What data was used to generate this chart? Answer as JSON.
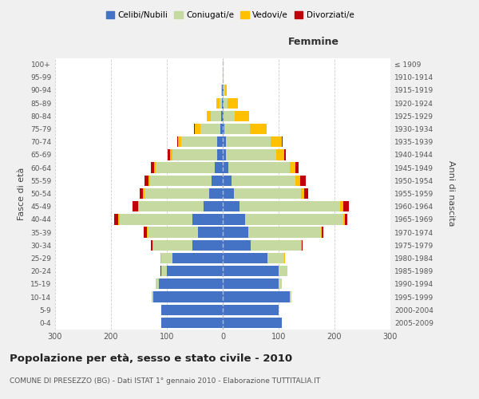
{
  "age_groups": [
    "0-4",
    "5-9",
    "10-14",
    "15-19",
    "20-24",
    "25-29",
    "30-34",
    "35-39",
    "40-44",
    "45-49",
    "50-54",
    "55-59",
    "60-64",
    "65-69",
    "70-74",
    "75-79",
    "80-84",
    "85-89",
    "90-94",
    "95-99",
    "100+"
  ],
  "birth_years": [
    "2005-2009",
    "2000-2004",
    "1995-1999",
    "1990-1994",
    "1985-1989",
    "1980-1984",
    "1975-1979",
    "1970-1974",
    "1965-1969",
    "1960-1964",
    "1955-1959",
    "1950-1954",
    "1945-1949",
    "1940-1944",
    "1935-1939",
    "1930-1934",
    "1925-1929",
    "1920-1924",
    "1915-1919",
    "1910-1914",
    "≤ 1909"
  ],
  "male": {
    "celibi": [
      110,
      110,
      125,
      115,
      100,
      90,
      55,
      45,
      55,
      35,
      25,
      20,
      15,
      10,
      10,
      5,
      3,
      1,
      1,
      0,
      0
    ],
    "coniugati": [
      0,
      0,
      2,
      5,
      10,
      20,
      70,
      90,
      130,
      115,
      115,
      110,
      105,
      80,
      65,
      35,
      18,
      5,
      2,
      0,
      0
    ],
    "vedovi": [
      0,
      0,
      0,
      0,
      0,
      1,
      1,
      1,
      2,
      2,
      3,
      3,
      3,
      5,
      5,
      10,
      8,
      5,
      0,
      0,
      0
    ],
    "divorziati": [
      0,
      0,
      0,
      0,
      1,
      1,
      3,
      5,
      8,
      10,
      5,
      7,
      5,
      3,
      2,
      2,
      0,
      0,
      0,
      0,
      0
    ]
  },
  "female": {
    "nubili": [
      105,
      100,
      120,
      100,
      100,
      80,
      50,
      45,
      40,
      30,
      20,
      15,
      10,
      5,
      5,
      3,
      2,
      1,
      1,
      0,
      0
    ],
    "coniugate": [
      0,
      0,
      3,
      5,
      15,
      30,
      90,
      130,
      175,
      180,
      120,
      115,
      110,
      90,
      80,
      45,
      20,
      8,
      3,
      1,
      0
    ],
    "vedove": [
      0,
      0,
      0,
      0,
      0,
      1,
      1,
      2,
      3,
      5,
      5,
      8,
      10,
      15,
      20,
      30,
      25,
      18,
      3,
      0,
      0
    ],
    "divorziate": [
      0,
      0,
      0,
      0,
      0,
      1,
      2,
      3,
      5,
      10,
      8,
      10,
      5,
      3,
      2,
      1,
      0,
      0,
      0,
      0,
      0
    ]
  },
  "colors": {
    "celibi": "#4472c4",
    "coniugati": "#c5d9a0",
    "vedovi": "#ffc000",
    "divorziati": "#c0000a"
  },
  "xlim": 300,
  "title": "Popolazione per età, sesso e stato civile - 2010",
  "subtitle": "COMUNE DI PRESEZZO (BG) - Dati ISTAT 1° gennaio 2010 - Elaborazione TUTTITALIA.IT",
  "ylabel_left": "Fasce di età",
  "ylabel_right": "Anni di nascita",
  "xlabel_right": "Femmine",
  "background_color": "#f0f0f0",
  "plot_bg_color": "#ffffff"
}
